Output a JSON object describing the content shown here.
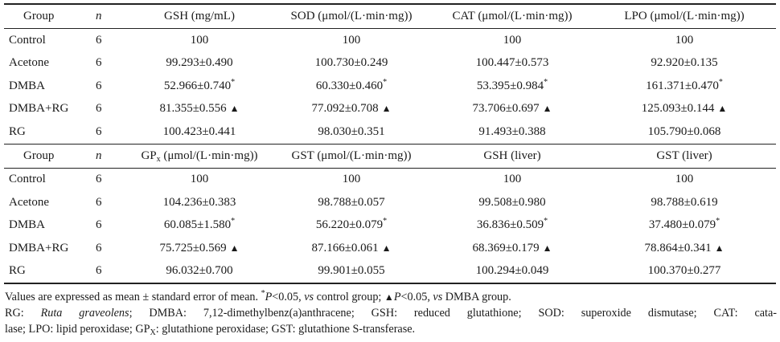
{
  "table1": {
    "headers": {
      "group": "Group",
      "n": "n",
      "gsh": "GSH (mg/mL)",
      "sod": "SOD (μmol/(L·min·mg))",
      "cat": "CAT (μmol/(L·min·mg))",
      "lpo": "LPO (μmol/(L·min·mg))"
    },
    "rows": [
      {
        "group": "Control",
        "n": "6",
        "gsh": "100",
        "sod": "100",
        "cat": "100",
        "lpo": "100"
      },
      {
        "group": "Acetone",
        "n": "6",
        "gsh": "99.293±0.490",
        "sod": "100.730±0.249",
        "cat": "100.447±0.573",
        "lpo": "92.920±0.135"
      },
      {
        "group": "DMBA",
        "n": "6",
        "gsh": "52.966±0.740",
        "sod": "60.330±0.460",
        "cat": "53.395±0.984",
        "lpo": "161.371±0.470"
      },
      {
        "group": "DMBA+RG",
        "n": "6",
        "gsh": "81.355±0.556",
        "sod": "77.092±0.708",
        "cat": "73.706±0.697",
        "lpo": "125.093±0.144"
      },
      {
        "group": "RG",
        "n": "6",
        "gsh": "100.423±0.441",
        "sod": "98.030±0.351",
        "cat": "91.493±0.388",
        "lpo": "105.790±0.068"
      }
    ]
  },
  "table2": {
    "headers": {
      "group": "Group",
      "n": "n",
      "gpx_main": "GP",
      "gpx_sub": "x",
      "gpx_unit": " (μmol/(L·min·mg))",
      "gst": "GST (μmol/(L·min·mg))",
      "gsh_liver": "GSH (liver)",
      "gst_liver": "GST (liver)"
    },
    "rows": [
      {
        "group": "Control",
        "n": "6",
        "gpx": "100",
        "gst": "100",
        "gsh_liver": "100",
        "gst_liver": "100"
      },
      {
        "group": "Acetone",
        "n": "6",
        "gpx": "104.236±0.383",
        "gst": "98.788±0.057",
        "gsh_liver": "99.508±0.980",
        "gst_liver": "98.788±0.619"
      },
      {
        "group": "DMBA",
        "n": "6",
        "gpx": "60.085±1.580",
        "gst": "56.220±0.079",
        "gsh_liver": "36.836±0.509",
        "gst_liver": "37.480±0.079"
      },
      {
        "group": "DMBA+RG",
        "n": "6",
        "gpx": "75.725±0.569",
        "gst": "87.166±0.061",
        "gsh_liver": "68.369±0.179",
        "gst_liver": "78.864±0.341"
      },
      {
        "group": "RG",
        "n": "6",
        "gpx": "96.032±0.700",
        "gst": "99.901±0.055",
        "gsh_liver": "100.294±0.049",
        "gst_liver": "100.370±0.277"
      }
    ]
  },
  "marks": {
    "asterisk": "*",
    "triangle": "▲"
  },
  "notes": {
    "line1_a": "Values are expressed as mean ± standard error of mean. ",
    "line1_star": "*",
    "line1_p1": "P",
    "line1_b": "<0.05, ",
    "line1_vs1": "vs",
    "line1_c": " control group; ",
    "line1_tri": "▲",
    "line1_p2": "P",
    "line1_d": "<0.05, ",
    "line1_vs2": "vs",
    "line1_e": " DMBA group.",
    "line2_a": "RG: ",
    "line2_species": "Ruta graveolens",
    "line2_b": "; DMBA: 7,12-dimethylbenz(a)anthracene; GSH: reduced glutathione; SOD: superoxide dismutase; CAT: cata-",
    "line3_a": "lase; LPO: lipid peroxidase; GP",
    "line3_sub": "X",
    "line3_b": ": glutathione peroxidase; GST: glutathione S-transferase."
  }
}
